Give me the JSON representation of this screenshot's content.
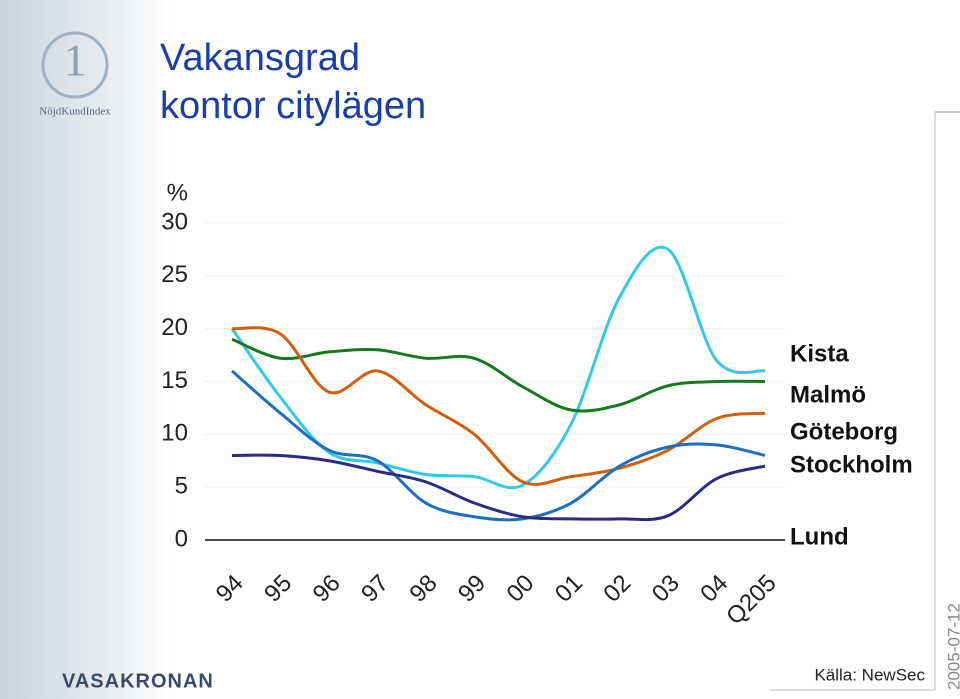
{
  "logo_text": "NöjdKundIndex",
  "brand": "VASAKRONAN",
  "source": "Källa: NewSec",
  "date": "2005-07-12",
  "chart_data": {
    "type": "line",
    "title": "Vakansgrad",
    "subtitle": "kontor citylägen",
    "y_unit": "%",
    "categories": [
      "94",
      "95",
      "96",
      "97",
      "98",
      "99",
      "00",
      "01",
      "02",
      "03",
      "04",
      "Q205"
    ],
    "ylim": [
      0,
      30
    ],
    "yticks": [
      0,
      5,
      10,
      15,
      20,
      25,
      30
    ],
    "grid": true,
    "series": [
      {
        "name": "Kista",
        "color": "#33c8ec",
        "values": [
          20,
          13.5,
          8.3,
          7.3,
          6.2,
          6,
          5.2,
          11,
          23,
          27.5,
          17,
          16
        ]
      },
      {
        "name": "Malmö",
        "color": "#167a1c",
        "values": [
          19,
          17.2,
          17.8,
          18,
          17.2,
          17.2,
          14.5,
          12.3,
          12.8,
          14.6,
          15,
          15
        ]
      },
      {
        "name": "Göteborg",
        "color": "#d0600e",
        "values": [
          20,
          19.5,
          14,
          16,
          12.8,
          10,
          5.5,
          6,
          6.8,
          8.5,
          11.5,
          12
        ]
      },
      {
        "name": "Stockholm",
        "color": "#1f6fc0",
        "values": [
          16,
          12,
          8.5,
          7.5,
          3.5,
          2.2,
          2,
          3.5,
          7,
          8.8,
          9,
          8
        ]
      },
      {
        "name": "Lund",
        "color": "#2b2b86",
        "values": [
          8,
          8,
          7.5,
          6.5,
          5.5,
          3.5,
          2.2,
          2,
          2,
          2.3,
          5.8,
          7
        ]
      }
    ]
  }
}
